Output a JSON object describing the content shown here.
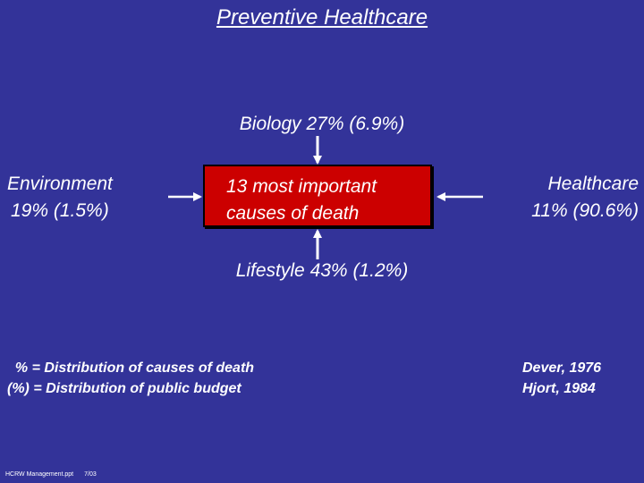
{
  "title": "Preventive Healthcare",
  "factors": {
    "biology": "Biology  27%  (6.9%)",
    "environment_line1": "Environment",
    "environment_line2": "19%  (1.5%)",
    "healthcare_line1": "Healthcare",
    "healthcare_line2": "11%  (90.6%)",
    "lifestyle": "Lifestyle  43%  (1.2%)"
  },
  "center": {
    "line1": "13 most important",
    "line2": "causes of death"
  },
  "legend": {
    "line1": "  % = Distribution of causes of death",
    "line2": "(%) = Distribution of public budget"
  },
  "references": {
    "line1": "Dever, 1976",
    "line2": "Hjort, 1984"
  },
  "footer": {
    "file": "HCRW Management.ppt",
    "date": "7/03"
  },
  "colors": {
    "background": "#333399",
    "center_box": "#cc0000",
    "text": "#ffffff"
  }
}
